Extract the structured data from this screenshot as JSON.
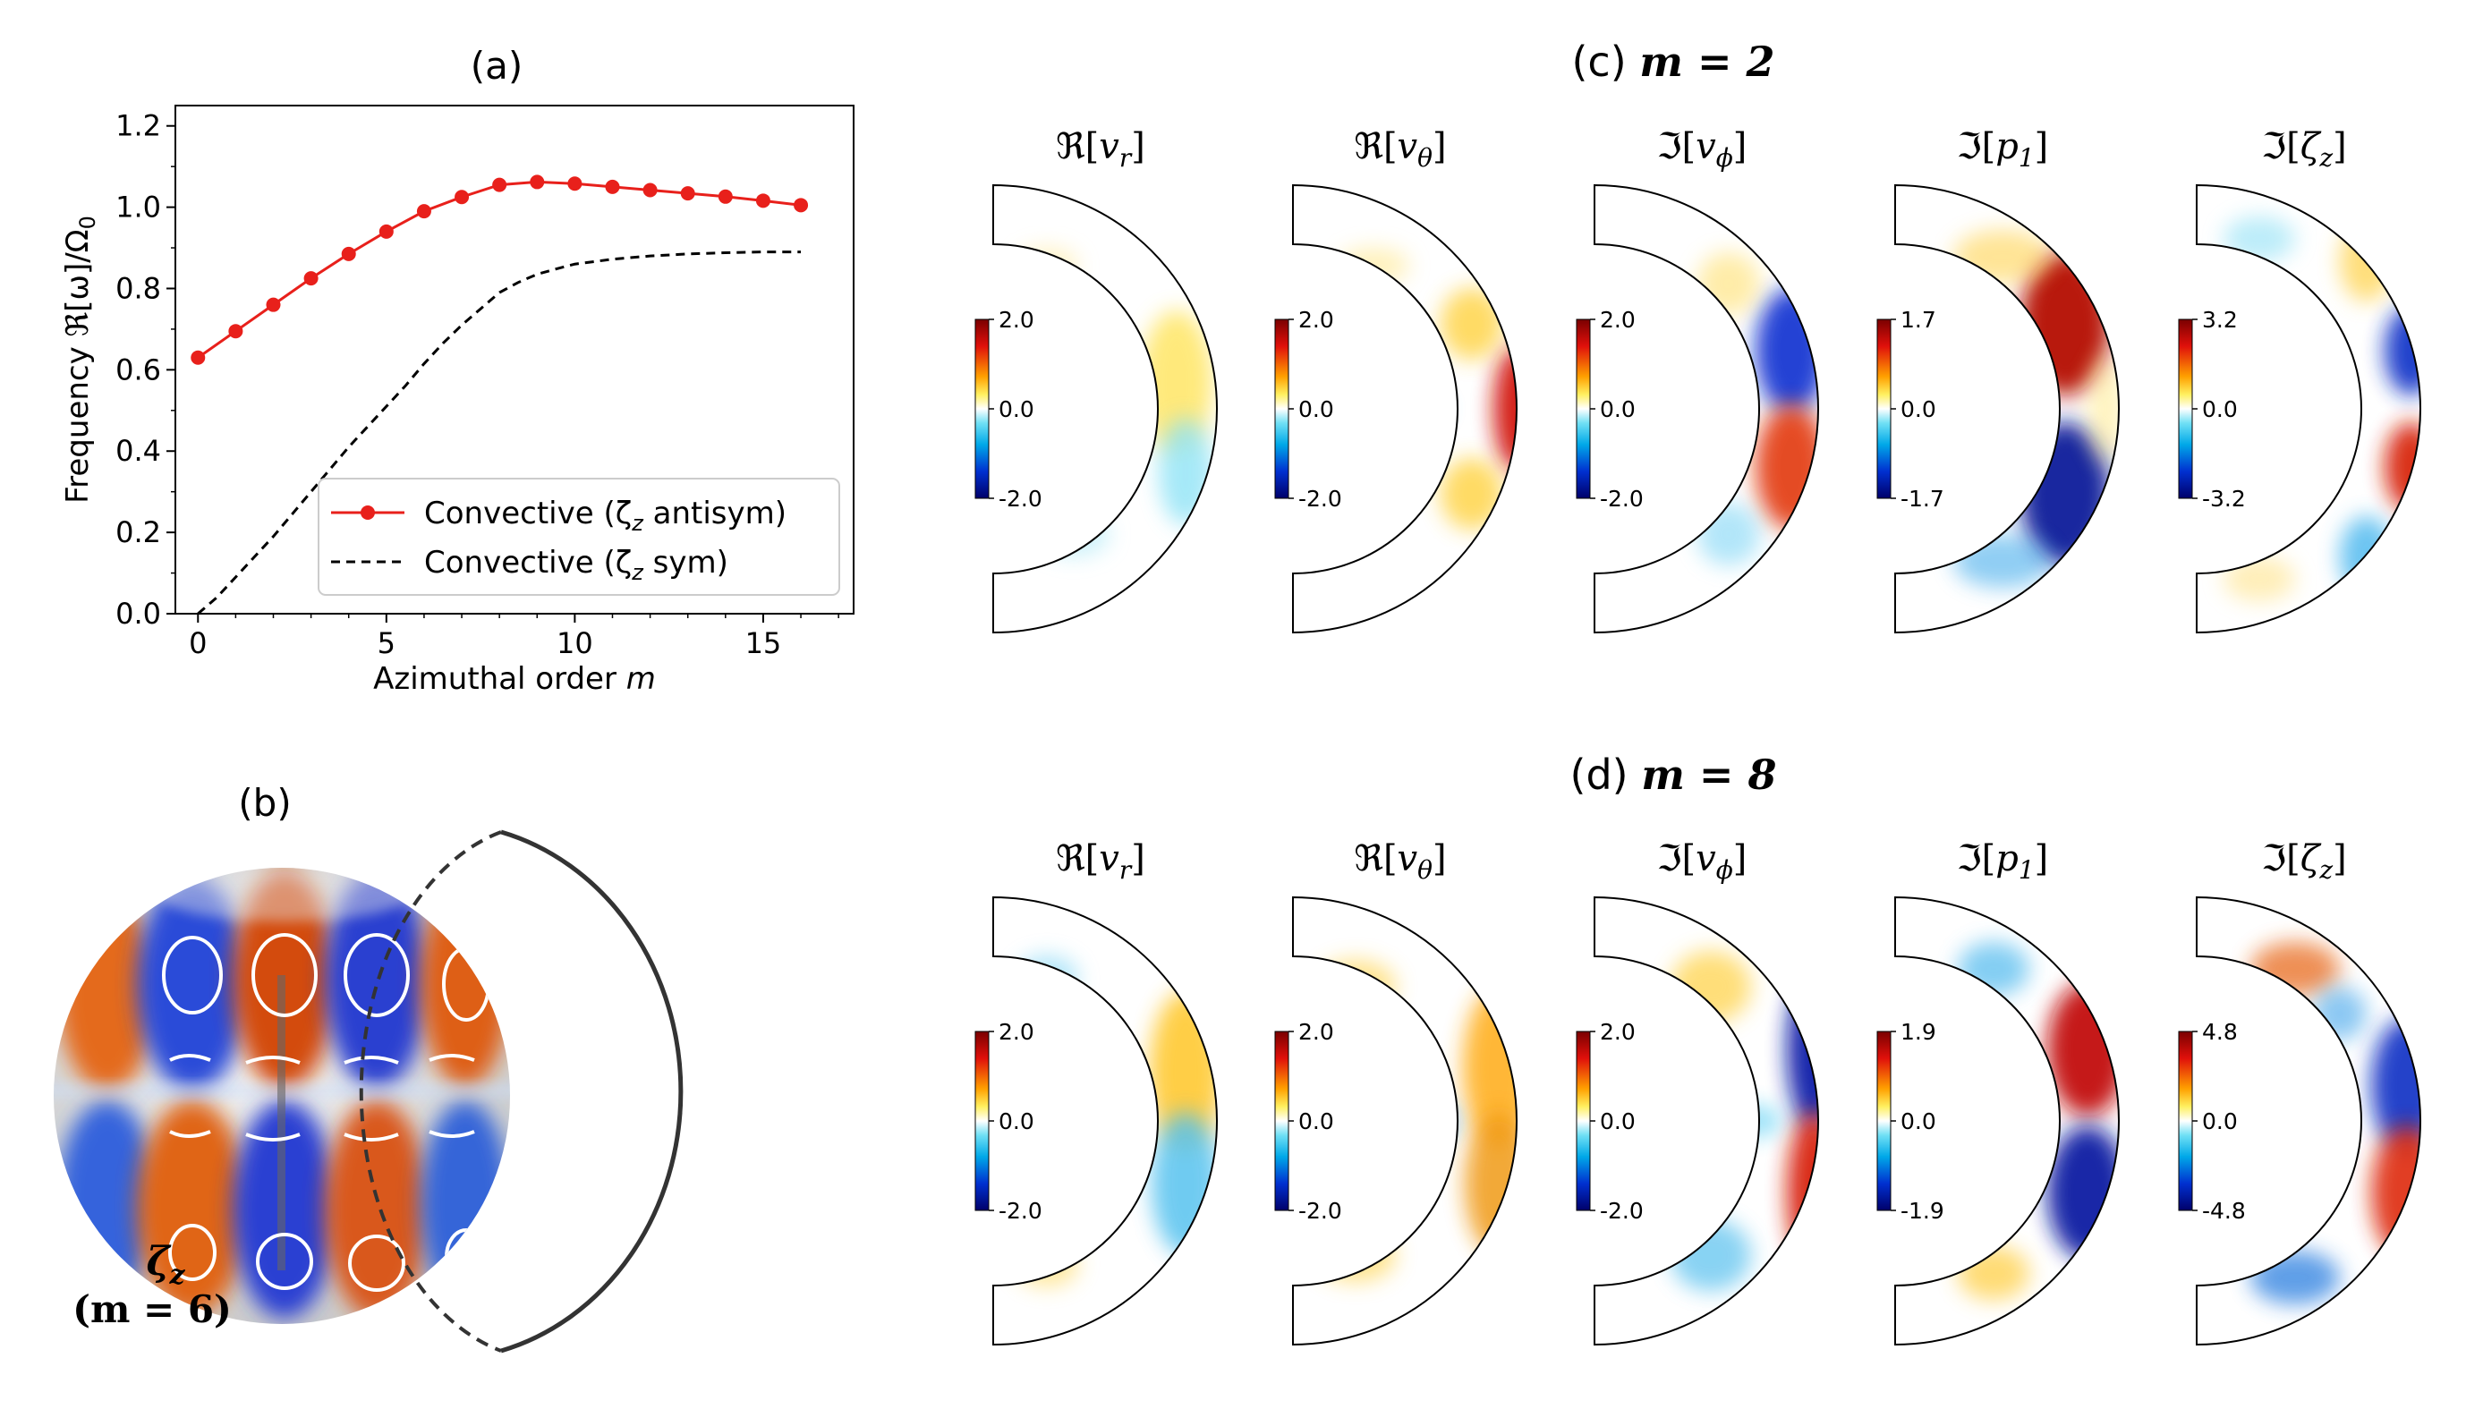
{
  "panel_a": {
    "title": "(a)",
    "xlabel": "Azimuthal order ",
    "xlabel_var": "m",
    "ylabel": "Frequency ℜ[ω]/Ω",
    "ylabel_sub": "0",
    "legend": [
      "Convective (ζ",
      "Convective (ζ"
    ],
    "legend_tail": [
      " antisym)",
      " sym)"
    ],
    "legend_sub": "z",
    "xticks": [
      "0",
      "5",
      "10",
      "15"
    ],
    "yticks": [
      "0.0",
      "0.2",
      "0.4",
      "0.6",
      "0.8",
      "1.0",
      "1.2"
    ]
  },
  "chart_data": {
    "type": "line",
    "xlim": [
      -0.6,
      17.4
    ],
    "ylim": [
      0.0,
      1.25
    ],
    "grid": false,
    "legend_position": "lower-right",
    "series": [
      {
        "name": "Convective (ζz antisym)",
        "style": "red solid with circle markers",
        "color": "#e8201b",
        "x": [
          0,
          1,
          2,
          3,
          4,
          5,
          6,
          7,
          8,
          9,
          10,
          11,
          12,
          13,
          14,
          15,
          16
        ],
        "y": [
          0.63,
          0.695,
          0.76,
          0.825,
          0.885,
          0.94,
          0.99,
          1.025,
          1.055,
          1.062,
          1.058,
          1.05,
          1.042,
          1.034,
          1.026,
          1.016,
          1.005
        ]
      },
      {
        "name": "Convective (ζz sym)",
        "style": "black dashed",
        "color": "#000000",
        "x": [
          0,
          0.5,
          1,
          1.5,
          2,
          2.5,
          3,
          3.5,
          4,
          4.5,
          5,
          5.5,
          6,
          6.5,
          7,
          7.5,
          8,
          8.5,
          9,
          9.5,
          10,
          11,
          12,
          13,
          14,
          15,
          16
        ],
        "y": [
          0.0,
          0.04,
          0.09,
          0.14,
          0.19,
          0.245,
          0.3,
          0.355,
          0.41,
          0.46,
          0.51,
          0.56,
          0.615,
          0.665,
          0.71,
          0.75,
          0.79,
          0.815,
          0.835,
          0.848,
          0.86,
          0.872,
          0.88,
          0.885,
          0.888,
          0.89,
          0.89
        ]
      }
    ]
  },
  "panel_b": {
    "title": "(b)",
    "label_var": "ζ",
    "label_sub": "z",
    "label_mode": "(m = 6)"
  },
  "panel_c": {
    "title_prefix": "(c) ",
    "title_math": "m = 2",
    "columns": [
      {
        "op": "ℜ",
        "var": "v",
        "sub": "r",
        "vmax": "2.0",
        "vmid": "0.0",
        "vmin": "-2.0"
      },
      {
        "op": "ℜ",
        "var": "v",
        "sub": "θ",
        "vmax": "2.0",
        "vmid": "0.0",
        "vmin": "-2.0"
      },
      {
        "op": "ℑ",
        "var": "v",
        "sub": "ϕ",
        "vmax": "2.0",
        "vmid": "0.0",
        "vmin": "-2.0"
      },
      {
        "op": "ℑ",
        "var": "p",
        "sub": "1",
        "vmax": "1.7",
        "vmid": "0.0",
        "vmin": "-1.7"
      },
      {
        "op": "ℑ",
        "var": "ζ",
        "sub": "z",
        "vmax": "3.2",
        "vmid": "0.0",
        "vmin": "-3.2"
      }
    ]
  },
  "panel_d": {
    "title_prefix": "(d) ",
    "title_math": "m = 8",
    "columns": [
      {
        "op": "ℜ",
        "var": "v",
        "sub": "r",
        "vmax": "2.0",
        "vmid": "0.0",
        "vmin": "-2.0"
      },
      {
        "op": "ℜ",
        "var": "v",
        "sub": "θ",
        "vmax": "2.0",
        "vmid": "0.0",
        "vmin": "-2.0"
      },
      {
        "op": "ℑ",
        "var": "v",
        "sub": "ϕ",
        "vmax": "2.0",
        "vmid": "0.0",
        "vmin": "-2.0"
      },
      {
        "op": "ℑ",
        "var": "p",
        "sub": "1",
        "vmax": "1.9",
        "vmid": "0.0",
        "vmin": "-1.9"
      },
      {
        "op": "ℑ",
        "var": "ζ",
        "sub": "z",
        "vmax": "4.8",
        "vmid": "0.0",
        "vmin": "-4.8"
      }
    ]
  }
}
